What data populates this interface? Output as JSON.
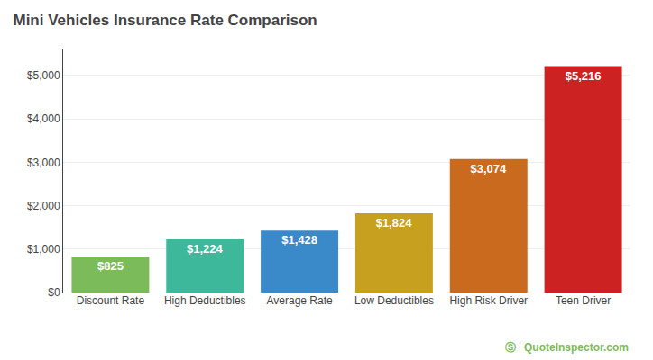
{
  "chart_data": {
    "type": "bar",
    "title": "Mini Vehicles Insurance Rate Comparison",
    "categories": [
      "Discount Rate",
      "High Deductibles",
      "Average Rate",
      "Low Deductibles",
      "High Risk Driver",
      "Teen Driver"
    ],
    "values": [
      825,
      1224,
      1428,
      1824,
      3074,
      5216
    ],
    "value_labels": [
      "$825",
      "$1,224",
      "$1,428",
      "$1,824",
      "$3,074",
      "$5,216"
    ],
    "data_labels": true,
    "colors": [
      "#7CBB5A",
      "#3DB89A",
      "#3A89C9",
      "#C8A020",
      "#C96A1E",
      "#CC2222"
    ],
    "ylim": [
      0,
      5600
    ],
    "yticks": [
      {
        "value": 0,
        "label": "$0"
      },
      {
        "value": 1000,
        "label": "$1,000"
      },
      {
        "value": 2000,
        "label": "$2,000"
      },
      {
        "value": 3000,
        "label": "$3,000"
      },
      {
        "value": 4000,
        "label": "$4,000"
      },
      {
        "value": 5000,
        "label": "$5,000"
      }
    ],
    "grid": true,
    "annotations": [
      "Ⓢ",
      "QuoteInspector.com"
    ]
  }
}
